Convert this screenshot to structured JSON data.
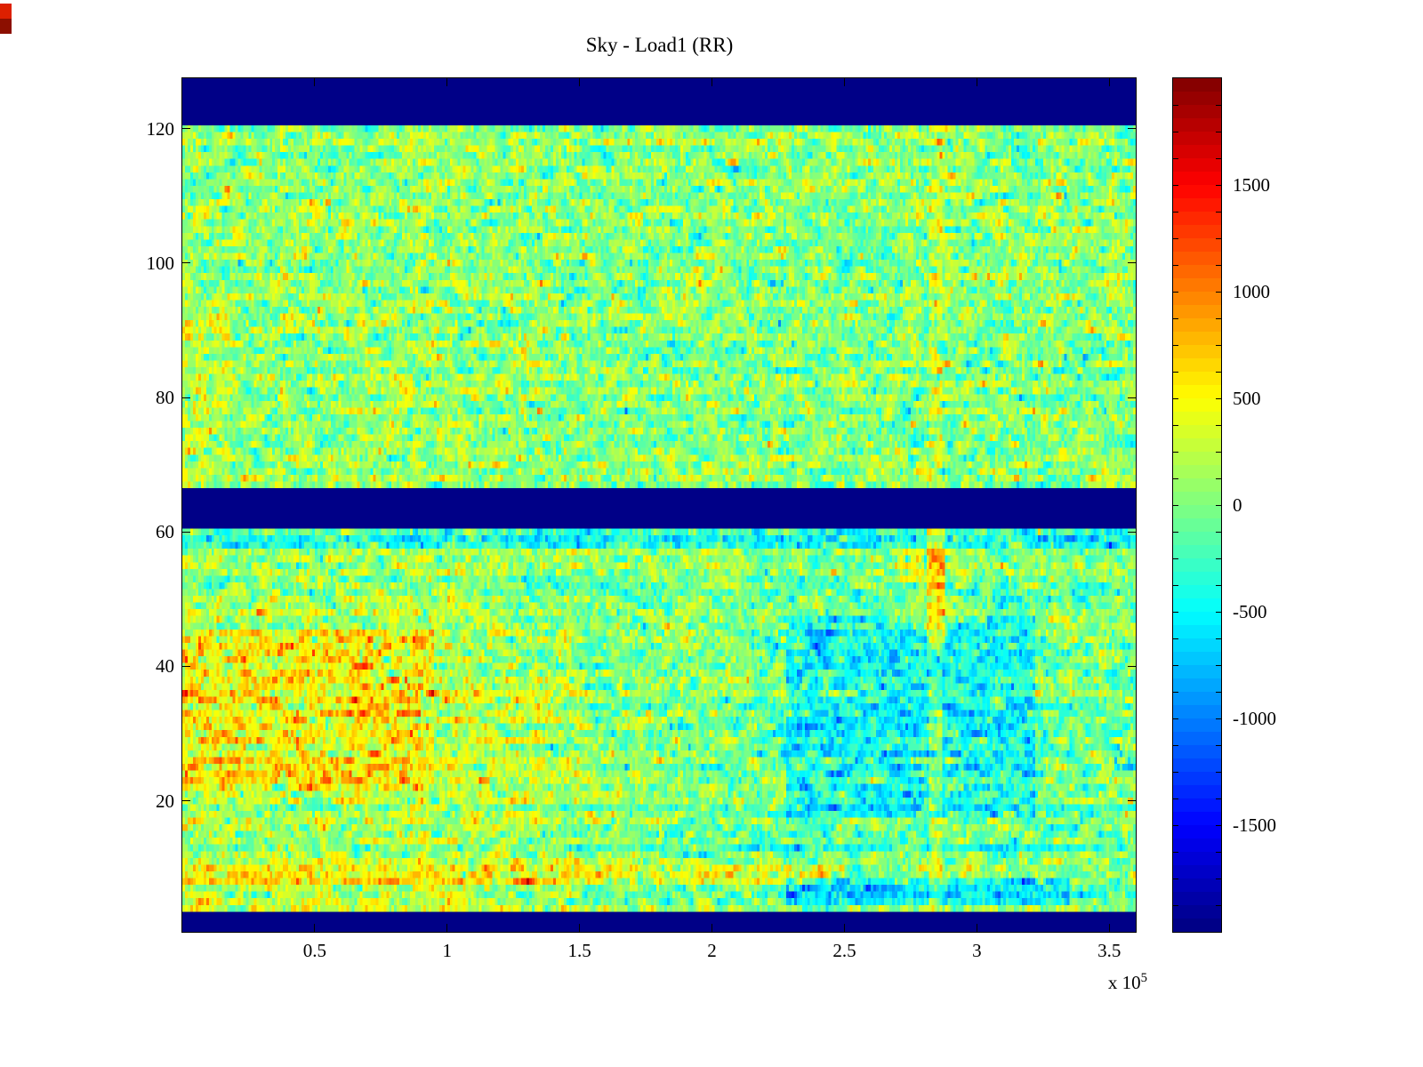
{
  "figure": {
    "background": "#ffffff"
  },
  "artifact": {
    "top_color": "#dd2000",
    "bottom_color": "#8c0f00"
  },
  "chart_data": {
    "type": "heatmap",
    "title": "Sky - Load1 (RR)",
    "x_axis": {
      "range": [
        0,
        360000
      ],
      "ticks": [
        50000,
        100000,
        150000,
        200000,
        250000,
        300000,
        350000
      ],
      "tick_labels": [
        "0.5",
        "1",
        "1.5",
        "2",
        "2.5",
        "3",
        "3.5"
      ],
      "multiplier": {
        "base": "x 10",
        "exp": "5"
      }
    },
    "y_axis": {
      "range": [
        0.5,
        127.5
      ],
      "ticks": [
        20,
        40,
        60,
        80,
        100,
        120
      ],
      "tick_labels": [
        "20",
        "40",
        "60",
        "80",
        "100",
        "120"
      ]
    },
    "colorbar": {
      "colormap": "jet",
      "levels": 64,
      "min": -2000,
      "max": 2000,
      "tick_step": 125,
      "labeled_ticks": [
        1500,
        1000,
        500,
        0,
        -500,
        -1000,
        -1500
      ],
      "labels": [
        "1500",
        "1000",
        "500",
        "0",
        "-500",
        "-1000",
        "-1500"
      ]
    },
    "grid": {
      "nx": 360,
      "ny": 127
    },
    "noise": {
      "base_mean": 40,
      "base_std": 270,
      "x_correlation": 0.55,
      "row_offset_std_lower": 85,
      "row_offset_std_upper": 40
    },
    "regions": [
      {
        "name": "masked-band-bottom",
        "x": [
          0,
          360000
        ],
        "y": [
          0,
          3.5
        ],
        "masked": true
      },
      {
        "name": "masked-band-middle",
        "x": [
          0,
          360000
        ],
        "y": [
          60.5,
          66.5
        ],
        "masked": true
      },
      {
        "name": "masked-band-top",
        "x": [
          0,
          360000
        ],
        "y": [
          120.5,
          128
        ],
        "masked": true
      },
      {
        "name": "lower-left-bias",
        "x": [
          0,
          130000
        ],
        "y": [
          3.5,
          60.5
        ],
        "mean": 60
      },
      {
        "name": "lower-right-bias",
        "x": [
          215000,
          360000
        ],
        "y": [
          3.5,
          60.5
        ],
        "mean": -70
      },
      {
        "name": "warm-left-lower",
        "x": [
          0,
          95000
        ],
        "y": [
          22,
          46
        ],
        "mean": 420,
        "std": 1.15
      },
      {
        "name": "warm-left-lower-fade",
        "x": [
          95000,
          150000
        ],
        "y": [
          22,
          46
        ],
        "mean": 130
      },
      {
        "name": "warm-left-bottom",
        "x": [
          0,
          150000
        ],
        "y": [
          4,
          22
        ],
        "mean": 150
      },
      {
        "name": "warm-row-8-11",
        "x": [
          0,
          250000
        ],
        "y": [
          7.5,
          10.5
        ],
        "mean": 200
      },
      {
        "name": "cool-row-13-15",
        "x": [
          0,
          360000
        ],
        "y": [
          13,
          15.5
        ],
        "mean": -200
      },
      {
        "name": "cold-patch-right",
        "x": [
          228000,
          322000
        ],
        "y": [
          18,
          48
        ],
        "mean": -380
      },
      {
        "name": "cold-bottom-row-right",
        "x": [
          228000,
          335000
        ],
        "y": [
          4.5,
          8.5
        ],
        "mean": -520
      },
      {
        "name": "cool-rows-48-52",
        "x": [
          150000,
          360000
        ],
        "y": [
          48,
          52
        ],
        "mean": -150
      },
      {
        "name": "cool-rows-58-60",
        "x": [
          0,
          360000
        ],
        "y": [
          58,
          60.5
        ],
        "mean": -380
      },
      {
        "name": "warm-row-57",
        "x": [
          0,
          360000
        ],
        "y": [
          56.5,
          58
        ],
        "mean": 120
      },
      {
        "name": "warm-blob-near-stripe",
        "x": [
          267000,
          298000
        ],
        "y": [
          46,
          60.5
        ],
        "mean": 140
      },
      {
        "name": "vertical-stripe-lower",
        "x": [
          281000,
          288000
        ],
        "y": [
          44,
          60.5
        ],
        "mean": 620
      },
      {
        "name": "vertical-stripe-mid",
        "x": [
          282000,
          287000
        ],
        "y": [
          3.5,
          44
        ],
        "mean": 330
      },
      {
        "name": "vertical-stripe-upper",
        "x": [
          282000,
          287000
        ],
        "y": [
          66.5,
          120.5
        ],
        "mean": 260
      },
      {
        "name": "warm-upper-left",
        "x": [
          0,
          18000
        ],
        "y": [
          66.5,
          95
        ],
        "mean": 150
      },
      {
        "name": "upper-left-bias",
        "x": [
          0,
          120000
        ],
        "y": [
          66.5,
          120.5
        ],
        "mean": 30
      },
      {
        "name": "cool-upper-mid",
        "x": [
          210000,
          265000
        ],
        "y": [
          76,
          104
        ],
        "mean": -70
      }
    ]
  }
}
